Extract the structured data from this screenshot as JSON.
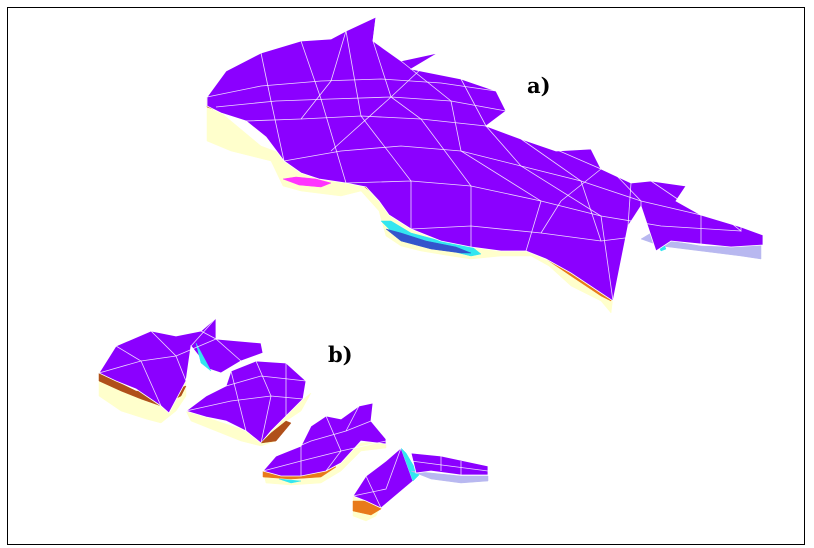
{
  "labels": {
    "a": "a)",
    "b": "b)"
  },
  "colors": {
    "top_surface": "#8b00ff",
    "mesh_lines": "#ffffff",
    "layer_cream": "#ffffcc",
    "layer_orange": "#e87a1a",
    "layer_brown": "#b0501a",
    "layer_cyan": "#33e6f0",
    "layer_blue": "#3355cc",
    "layer_lavender": "#b8b8f0",
    "layer_magenta": "#ff33ff",
    "frame": "#000000",
    "background": "#ffffff"
  },
  "icons": [
    "3d-layered-model-whole",
    "3d-layered-model-split"
  ]
}
